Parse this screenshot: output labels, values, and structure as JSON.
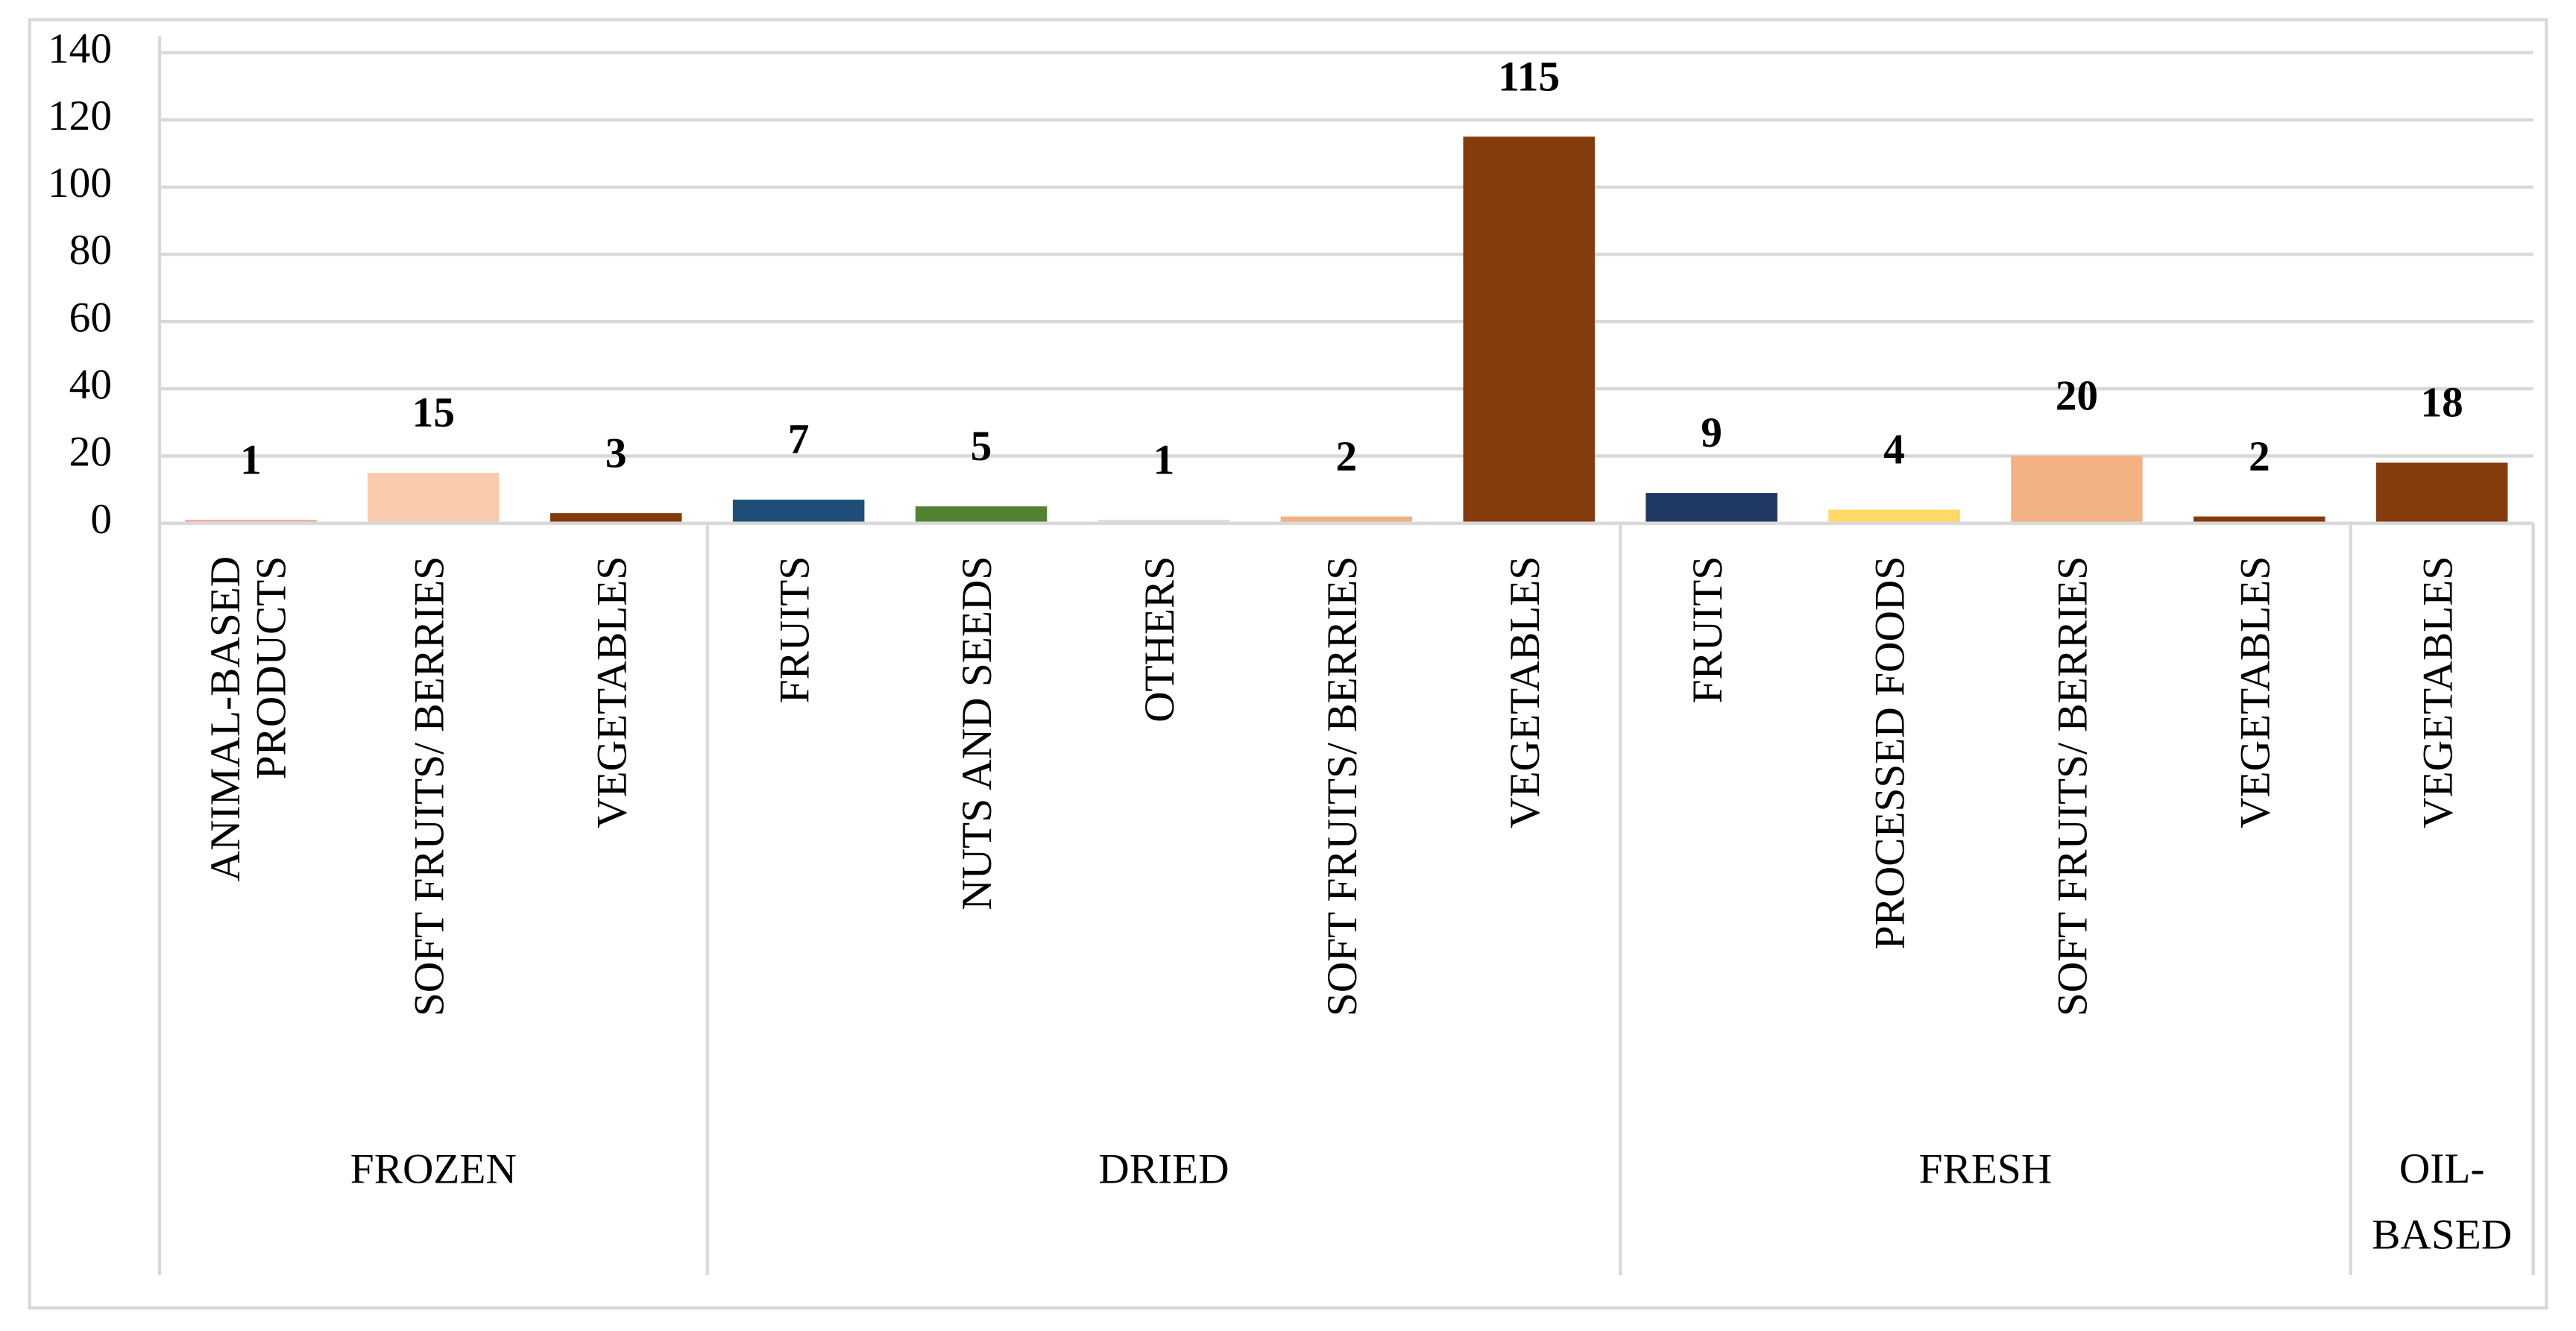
{
  "chart_data": {
    "type": "bar",
    "groups": [
      {
        "name": "FROZEN",
        "categories": [
          "ANIMAL-BASED PRODUCTS",
          "SOFT FRUITS/ BERRIES",
          "VEGETABLES"
        ],
        "values": [
          1,
          15,
          3
        ],
        "colors": [
          "#f4a7a0",
          "#f8cbad",
          "#843c0c"
        ]
      },
      {
        "name": "DRIED",
        "categories": [
          "FRUITS",
          "NUTS AND SEEDS",
          "OTHERS",
          "SOFT FRUITS/ BERRIES",
          "VEGETABLES"
        ],
        "values": [
          7,
          5,
          1,
          2,
          115
        ],
        "colors": [
          "#1f4e79",
          "#548235",
          "#dcdcf0",
          "#f4b183",
          "#843c0c"
        ]
      },
      {
        "name": "FRESH",
        "categories": [
          "FRUITS",
          "PROCESSED FOODS",
          "SOFT FRUITS/ BERRIES",
          "VEGETABLES"
        ],
        "values": [
          9,
          4,
          20,
          2
        ],
        "colors": [
          "#203864",
          "#ffd966",
          "#f4b183",
          "#843c0c"
        ]
      },
      {
        "name": "OIL-BASED",
        "categories": [
          "VEGETABLES"
        ],
        "values": [
          18
        ],
        "colors": [
          "#843c0c"
        ]
      }
    ],
    "ylim": [
      0,
      140
    ],
    "yticks": [
      0,
      20,
      40,
      60,
      80,
      100,
      120,
      140
    ],
    "grid": true
  }
}
